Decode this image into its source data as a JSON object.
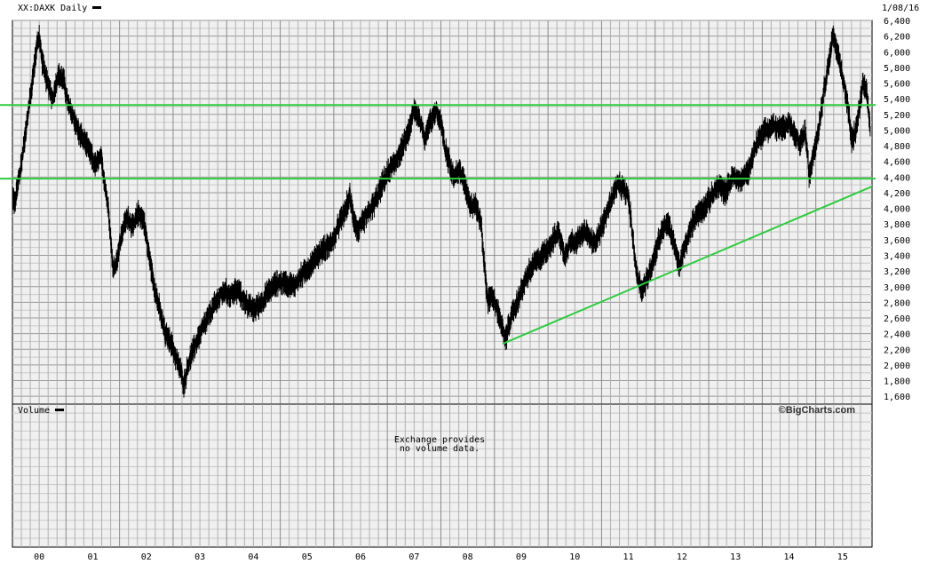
{
  "chart_data": {
    "type": "line",
    "title": "XX:DAXK Daily",
    "date": "1/08/16",
    "xlim": [
      2000.0,
      2016.05
    ],
    "ylim": [
      1500,
      6400
    ],
    "yticks": [
      1600,
      1800,
      2000,
      2200,
      2400,
      2600,
      2800,
      3000,
      3200,
      3400,
      3600,
      3800,
      4000,
      4200,
      4400,
      4600,
      4800,
      5000,
      5200,
      5400,
      5600,
      5800,
      6000,
      6200,
      6400
    ],
    "ytick_labels": [
      "1,600",
      "1,800",
      "2,000",
      "2,200",
      "2,400",
      "2,600",
      "2,800",
      "3,000",
      "3,200",
      "3,400",
      "3,600",
      "3,800",
      "4,000",
      "4,200",
      "4,400",
      "4,600",
      "4,800",
      "5,000",
      "5,200",
      "5,400",
      "5,600",
      "5,800",
      "6,000",
      "6,200",
      "6,400"
    ],
    "xtick_labels": [
      {
        "x": 2000.0,
        "label": "00"
      },
      {
        "x": 2001.0,
        "label": "01"
      },
      {
        "x": 2002.0,
        "label": "02"
      },
      {
        "x": 2003.0,
        "label": "03"
      },
      {
        "x": 2004.0,
        "label": "04"
      },
      {
        "x": 2005.0,
        "label": "05"
      },
      {
        "x": 2006.0,
        "label": "06"
      },
      {
        "x": 2007.0,
        "label": "07"
      },
      {
        "x": 2008.0,
        "label": "08"
      },
      {
        "x": 2009.0,
        "label": "09"
      },
      {
        "x": 2010.0,
        "label": "10"
      },
      {
        "x": 2011.0,
        "label": "11"
      },
      {
        "x": 2012.0,
        "label": "12"
      },
      {
        "x": 2013.0,
        "label": "13"
      },
      {
        "x": 2014.0,
        "label": "14"
      },
      {
        "x": 2015.0,
        "label": "15"
      }
    ],
    "series": [
      {
        "color": "#000000",
        "points": [
          [
            1999.75,
            4050
          ],
          [
            1999.85,
            3950
          ],
          [
            1999.95,
            4150
          ],
          [
            2000.05,
            4100
          ],
          [
            2000.15,
            4500
          ],
          [
            2000.25,
            5000
          ],
          [
            2000.35,
            5500
          ],
          [
            2000.45,
            6050
          ],
          [
            2000.5,
            6200
          ],
          [
            2000.55,
            5900
          ],
          [
            2000.65,
            5600
          ],
          [
            2000.75,
            5400
          ],
          [
            2000.85,
            5700
          ],
          [
            2000.95,
            5650
          ],
          [
            2001.05,
            5300
          ],
          [
            2001.15,
            5150
          ],
          [
            2001.25,
            4950
          ],
          [
            2001.35,
            4850
          ],
          [
            2001.45,
            4700
          ],
          [
            2001.55,
            4550
          ],
          [
            2001.65,
            4650
          ],
          [
            2001.72,
            4350
          ],
          [
            2001.8,
            3950
          ],
          [
            2001.88,
            3200
          ],
          [
            2001.95,
            3350
          ],
          [
            2002.05,
            3700
          ],
          [
            2002.15,
            3900
          ],
          [
            2002.25,
            3750
          ],
          [
            2002.35,
            3950
          ],
          [
            2002.45,
            3850
          ],
          [
            2002.55,
            3400
          ],
          [
            2002.65,
            3000
          ],
          [
            2002.75,
            2700
          ],
          [
            2002.85,
            2400
          ],
          [
            2002.95,
            2300
          ],
          [
            2003.05,
            2100
          ],
          [
            2003.15,
            1900
          ],
          [
            2003.2,
            1750
          ],
          [
            2003.28,
            2000
          ],
          [
            2003.38,
            2200
          ],
          [
            2003.5,
            2400
          ],
          [
            2003.65,
            2600
          ],
          [
            2003.8,
            2800
          ],
          [
            2003.95,
            2950
          ],
          [
            2004.05,
            2900
          ],
          [
            2004.2,
            2950
          ],
          [
            2004.35,
            2800
          ],
          [
            2004.5,
            2700
          ],
          [
            2004.65,
            2800
          ],
          [
            2004.8,
            2950
          ],
          [
            2004.95,
            3050
          ],
          [
            2005.1,
            3050
          ],
          [
            2005.25,
            3000
          ],
          [
            2005.4,
            3150
          ],
          [
            2005.55,
            3250
          ],
          [
            2005.7,
            3400
          ],
          [
            2005.85,
            3500
          ],
          [
            2006.0,
            3600
          ],
          [
            2006.1,
            3800
          ],
          [
            2006.2,
            3950
          ],
          [
            2006.3,
            4150
          ],
          [
            2006.38,
            3850
          ],
          [
            2006.45,
            3700
          ],
          [
            2006.6,
            3900
          ],
          [
            2006.75,
            4050
          ],
          [
            2006.9,
            4300
          ],
          [
            2007.05,
            4500
          ],
          [
            2007.15,
            4600
          ],
          [
            2007.3,
            4800
          ],
          [
            2007.4,
            5000
          ],
          [
            2007.5,
            5250
          ],
          [
            2007.6,
            5150
          ],
          [
            2007.7,
            4900
          ],
          [
            2007.8,
            5100
          ],
          [
            2007.9,
            5250
          ],
          [
            2008.0,
            5100
          ],
          [
            2008.08,
            4750
          ],
          [
            2008.15,
            4600
          ],
          [
            2008.25,
            4400
          ],
          [
            2008.35,
            4500
          ],
          [
            2008.45,
            4300
          ],
          [
            2008.55,
            4050
          ],
          [
            2008.65,
            4050
          ],
          [
            2008.75,
            3800
          ],
          [
            2008.82,
            3200
          ],
          [
            2008.88,
            2800
          ],
          [
            2008.95,
            2900
          ],
          [
            2009.05,
            2700
          ],
          [
            2009.12,
            2550
          ],
          [
            2009.2,
            2300
          ],
          [
            2009.3,
            2600
          ],
          [
            2009.4,
            2750
          ],
          [
            2009.5,
            2950
          ],
          [
            2009.62,
            3150
          ],
          [
            2009.75,
            3300
          ],
          [
            2009.9,
            3400
          ],
          [
            2010.0,
            3500
          ],
          [
            2010.1,
            3600
          ],
          [
            2010.2,
            3700
          ],
          [
            2010.3,
            3400
          ],
          [
            2010.4,
            3550
          ],
          [
            2010.55,
            3600
          ],
          [
            2010.7,
            3700
          ],
          [
            2010.85,
            3550
          ],
          [
            2011.0,
            3750
          ],
          [
            2011.1,
            3950
          ],
          [
            2011.2,
            4150
          ],
          [
            2011.3,
            4300
          ],
          [
            2011.4,
            4250
          ],
          [
            2011.5,
            4150
          ],
          [
            2011.58,
            3650
          ],
          [
            2011.65,
            3200
          ],
          [
            2011.75,
            2950
          ],
          [
            2011.85,
            3100
          ],
          [
            2011.95,
            3300
          ],
          [
            2012.05,
            3550
          ],
          [
            2012.15,
            3750
          ],
          [
            2012.25,
            3800
          ],
          [
            2012.35,
            3550
          ],
          [
            2012.45,
            3250
          ],
          [
            2012.55,
            3500
          ],
          [
            2012.65,
            3700
          ],
          [
            2012.75,
            3900
          ],
          [
            2012.9,
            4000
          ],
          [
            2013.05,
            4150
          ],
          [
            2013.2,
            4300
          ],
          [
            2013.3,
            4200
          ],
          [
            2013.45,
            4400
          ],
          [
            2013.6,
            4350
          ],
          [
            2013.75,
            4500
          ],
          [
            2013.9,
            4850
          ],
          [
            2014.05,
            5000
          ],
          [
            2014.2,
            5050
          ],
          [
            2014.35,
            5000
          ],
          [
            2014.5,
            5100
          ],
          [
            2014.6,
            4950
          ],
          [
            2014.7,
            4800
          ],
          [
            2014.8,
            5000
          ],
          [
            2014.88,
            4400
          ],
          [
            2014.95,
            4700
          ],
          [
            2015.05,
            5000
          ],
          [
            2015.15,
            5500
          ],
          [
            2015.25,
            5900
          ],
          [
            2015.32,
            6200
          ],
          [
            2015.4,
            6000
          ],
          [
            2015.5,
            5700
          ],
          [
            2015.6,
            5300
          ],
          [
            2015.67,
            4850
          ],
          [
            2015.75,
            5000
          ],
          [
            2015.82,
            5300
          ],
          [
            2015.88,
            5600
          ],
          [
            2015.95,
            5450
          ],
          [
            2016.02,
            5000
          ]
        ]
      }
    ],
    "horizontal_lines": [
      {
        "y": 5320,
        "color": "#2ecc40"
      },
      {
        "y": 4380,
        "color": "#2ecc40"
      }
    ],
    "trendlines": [
      {
        "x1": 2009.15,
        "y1": 2270,
        "x2": 2016.05,
        "y2": 4280,
        "color": "#2ecc40"
      }
    ],
    "grid": true,
    "volume_label": "Volume",
    "volume_note_line1": "Exchange provides",
    "volume_note_line2": "no volume data.",
    "watermark": "©BigCharts.com"
  }
}
